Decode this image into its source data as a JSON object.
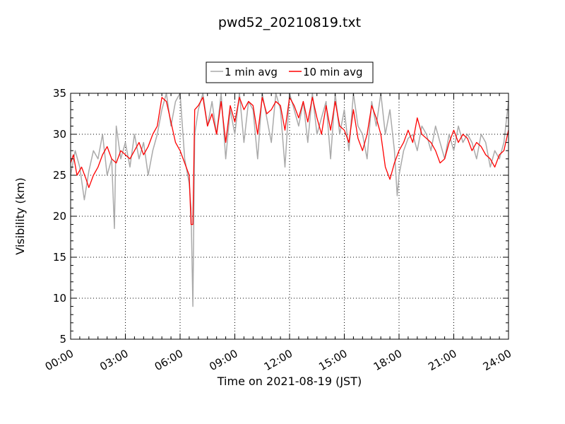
{
  "chart_data": {
    "type": "line",
    "title": "pwd52_20210819.txt",
    "xlabel": "Time on 2021-08-19 (JST)",
    "ylabel": "Visibility (km)",
    "xlim": [
      0,
      24
    ],
    "ylim": [
      5,
      35
    ],
    "x_unit": "hours (JST)",
    "x_ticks": [
      0,
      3,
      6,
      9,
      12,
      15,
      18,
      21,
      24
    ],
    "x_tick_labels": [
      "00:00",
      "03:00",
      "06:00",
      "09:00",
      "12:00",
      "15:00",
      "18:00",
      "21:00",
      "24:00"
    ],
    "y_ticks": [
      5,
      10,
      15,
      20,
      25,
      30,
      35
    ],
    "y_tick_labels": [
      "5",
      "10",
      "15",
      "20",
      "25",
      "30",
      "35"
    ],
    "grid": true,
    "legend_position": "top-center",
    "series": [
      {
        "name": "1 min avg",
        "color": "#aaaaaa",
        "sampling": "1 min",
        "x": [
          0.0,
          0.25,
          0.5,
          0.75,
          1.0,
          1.25,
          1.5,
          1.75,
          2.0,
          2.25,
          2.4,
          2.5,
          2.75,
          3.0,
          3.25,
          3.5,
          3.75,
          4.0,
          4.25,
          4.5,
          4.75,
          5.0,
          5.25,
          5.5,
          5.75,
          6.0,
          6.25,
          6.5,
          6.6,
          6.7,
          6.8,
          7.0,
          7.25,
          7.5,
          7.75,
          8.0,
          8.25,
          8.5,
          8.75,
          9.0,
          9.25,
          9.5,
          9.75,
          10.0,
          10.25,
          10.5,
          10.75,
          11.0,
          11.25,
          11.5,
          11.75,
          12.0,
          12.25,
          12.5,
          12.75,
          13.0,
          13.25,
          13.5,
          13.75,
          14.0,
          14.25,
          14.5,
          14.75,
          15.0,
          15.25,
          15.5,
          15.75,
          16.0,
          16.25,
          16.5,
          16.75,
          17.0,
          17.25,
          17.5,
          17.75,
          17.9,
          18.0,
          18.25,
          18.5,
          18.75,
          19.0,
          19.25,
          19.5,
          19.75,
          20.0,
          20.25,
          20.5,
          20.75,
          21.0,
          21.25,
          21.5,
          21.75,
          22.0,
          22.25,
          22.5,
          22.75,
          23.0,
          23.25,
          23.5,
          23.75,
          24.0
        ],
        "y": [
          25.0,
          28.0,
          26.0,
          22.0,
          25.5,
          28.0,
          27.0,
          30.0,
          25.0,
          27.0,
          18.5,
          31.0,
          27.0,
          29.0,
          26.0,
          30.0,
          27.0,
          29.0,
          25.0,
          28.0,
          30.0,
          33.0,
          35.0,
          31.0,
          34.0,
          35.0,
          27.0,
          24.0,
          21.0,
          9.0,
          30.0,
          33.0,
          35.0,
          31.0,
          34.0,
          30.0,
          35.0,
          27.0,
          33.0,
          30.0,
          35.0,
          29.0,
          34.0,
          33.0,
          27.0,
          35.0,
          32.0,
          29.0,
          35.0,
          33.0,
          26.0,
          35.0,
          33.0,
          31.0,
          34.0,
          29.0,
          35.0,
          30.0,
          32.0,
          34.0,
          27.0,
          35.0,
          30.0,
          33.0,
          28.0,
          35.0,
          31.0,
          30.0,
          27.0,
          34.0,
          31.0,
          35.0,
          30.0,
          33.0,
          28.0,
          22.5,
          25.0,
          28.0,
          29.5,
          30.0,
          28.0,
          31.0,
          30.0,
          28.0,
          31.0,
          29.0,
          27.0,
          30.0,
          28.0,
          31.0,
          29.0,
          30.0,
          29.0,
          27.0,
          30.0,
          29.0,
          26.0,
          28.0,
          27.0,
          29.0,
          34.0
        ]
      },
      {
        "name": "10 min avg",
        "color": "#ff0000",
        "sampling": "10 min",
        "x": [
          0.0,
          0.15,
          0.35,
          0.6,
          0.85,
          1.0,
          1.25,
          1.5,
          1.75,
          2.0,
          2.25,
          2.5,
          2.75,
          3.0,
          3.25,
          3.5,
          3.75,
          4.0,
          4.25,
          4.5,
          4.75,
          5.0,
          5.25,
          5.5,
          5.75,
          6.0,
          6.25,
          6.5,
          6.6,
          6.7,
          6.8,
          7.0,
          7.25,
          7.5,
          7.75,
          8.0,
          8.25,
          8.5,
          8.75,
          9.0,
          9.25,
          9.5,
          9.75,
          10.0,
          10.25,
          10.5,
          10.75,
          11.0,
          11.25,
          11.5,
          11.75,
          12.0,
          12.25,
          12.5,
          12.75,
          13.0,
          13.25,
          13.5,
          13.75,
          14.0,
          14.25,
          14.5,
          14.75,
          15.0,
          15.25,
          15.5,
          15.75,
          16.0,
          16.25,
          16.5,
          16.75,
          17.0,
          17.25,
          17.5,
          17.75,
          18.0,
          18.25,
          18.5,
          18.75,
          19.0,
          19.25,
          19.5,
          19.75,
          20.0,
          20.25,
          20.5,
          20.75,
          21.0,
          21.25,
          21.5,
          21.75,
          22.0,
          22.25,
          22.5,
          22.75,
          23.0,
          23.25,
          23.5,
          23.75,
          24.0
        ],
        "y": [
          26.5,
          27.5,
          25.0,
          26.0,
          24.5,
          23.5,
          25.0,
          26.0,
          27.5,
          28.5,
          27.0,
          26.5,
          28.0,
          27.5,
          27.0,
          28.0,
          29.0,
          27.5,
          28.5,
          30.0,
          31.0,
          34.5,
          34.0,
          31.5,
          29.0,
          28.0,
          26.5,
          25.0,
          19.0,
          19.0,
          33.0,
          33.5,
          34.5,
          31.0,
          32.5,
          30.0,
          34.0,
          29.0,
          33.5,
          31.5,
          34.5,
          33.0,
          34.0,
          33.5,
          30.0,
          34.5,
          32.5,
          33.0,
          34.0,
          33.5,
          30.5,
          34.5,
          33.5,
          32.0,
          34.0,
          31.5,
          34.5,
          32.0,
          30.0,
          33.5,
          30.5,
          34.0,
          31.0,
          30.5,
          29.0,
          33.0,
          29.5,
          28.0,
          30.0,
          33.5,
          32.0,
          30.0,
          26.0,
          24.5,
          26.5,
          28.0,
          29.0,
          30.5,
          29.0,
          32.0,
          30.0,
          29.5,
          29.0,
          28.0,
          26.5,
          27.0,
          29.0,
          30.5,
          29.0,
          30.0,
          29.5,
          28.0,
          29.0,
          28.5,
          27.5,
          27.0,
          26.0,
          27.5,
          28.0,
          30.5
        ]
      }
    ]
  }
}
